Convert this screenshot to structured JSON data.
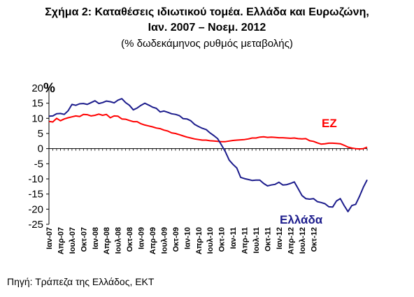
{
  "title_line1": "Σχήμα 2: Καταθέσεις ιδιωτικού τομέα. Ελλάδα και Ευρωζώνη,",
  "title_line2": "Ιαν. 2007 – Νοεμ. 2012",
  "subtitle": "(% δωδεκάμηνος ρυθμός μεταβολής)",
  "source": "Πηγή: Τράπεζα της Ελλάδος, ΕΚΤ",
  "chart_data": {
    "type": "line",
    "ylabel": "%",
    "ylim": [
      -25,
      20
    ],
    "yticks": [
      20,
      15,
      10,
      5,
      0,
      -5,
      -10,
      -15,
      -20,
      -25
    ],
    "xtick_labels": [
      "Ιαν-07",
      "Απρ-07",
      "Ιουλ-07",
      "Οκτ-07",
      "Ιαν-08",
      "Απρ-08",
      "Ιουλ-08",
      "Οκτ-08",
      "Ιαν-09",
      "Απρ-09",
      "Ιουλ-09",
      "Οκτ-09",
      "Ιαν-10",
      "Απρ-10",
      "Ιουλ-10",
      "Οκτ-10",
      "Ιαν-11",
      "Απρ-11",
      "Ιουλ-11",
      "Οκτ-11",
      "Ιαν-12",
      "Απρ-12",
      "Ιουλ-12",
      "Οκτ-12"
    ],
    "grid": false,
    "series": [
      {
        "name": "Ελλάδα",
        "color": "#1c1c8c",
        "values": [
          10.7,
          10.8,
          11.5,
          11.6,
          11.3,
          12.5,
          14.6,
          14.3,
          14.8,
          14.9,
          14.6,
          15.2,
          15.8,
          14.9,
          15.2,
          15.7,
          15.5,
          15.1,
          16.0,
          16.5,
          15.2,
          14.3,
          12.8,
          13.4,
          14.3,
          15.0,
          14.4,
          13.7,
          13.3,
          12.1,
          12.4,
          12.0,
          11.5,
          11.3,
          10.9,
          9.9,
          9.8,
          9.2,
          8.0,
          7.3,
          6.7,
          6.3,
          5.2,
          4.3,
          3.3,
          1.2,
          -1.0,
          -3.8,
          -5.2,
          -6.4,
          -9.5,
          -9.9,
          -10.2,
          -10.5,
          -10.4,
          -10.4,
          -11.5,
          -12.3,
          -12.0,
          -11.8,
          -11.1,
          -12.0,
          -11.9,
          -11.5,
          -11.0,
          -13.2,
          -15.5,
          -16.5,
          -16.7,
          -16.5,
          -17.5,
          -17.8,
          -18.2,
          -19.2,
          -19.3,
          -17.3,
          -16.5,
          -18.8,
          -20.8,
          -18.8,
          -18.4,
          -15.8,
          -12.8,
          -10.3
        ],
        "label": "Ελλάδα"
      },
      {
        "name": "ΕΖ",
        "color": "#ff0000",
        "values": [
          9.0,
          8.8,
          10.0,
          9.2,
          9.8,
          10.2,
          10.5,
          10.8,
          10.6,
          11.3,
          11.2,
          10.8,
          11.0,
          11.4,
          11.0,
          11.3,
          10.2,
          10.8,
          10.7,
          9.8,
          9.7,
          9.3,
          8.9,
          8.9,
          8.2,
          7.8,
          7.5,
          7.2,
          6.8,
          6.6,
          6.1,
          5.8,
          5.2,
          5.0,
          4.6,
          4.2,
          3.8,
          3.5,
          3.2,
          3.0,
          2.8,
          2.8,
          2.6,
          2.5,
          2.4,
          2.3,
          2.3,
          2.5,
          2.7,
          2.8,
          2.9,
          3.0,
          3.2,
          3.5,
          3.5,
          3.8,
          3.9,
          3.7,
          3.8,
          3.7,
          3.6,
          3.6,
          3.5,
          3.4,
          3.5,
          3.3,
          3.2,
          3.3,
          2.6,
          2.4,
          1.9,
          1.5,
          1.6,
          1.8,
          1.8,
          1.7,
          1.6,
          1.1,
          0.5,
          0.2,
          0.0,
          -0.1,
          0.0,
          0.5
        ],
        "label": "ΕΖ"
      }
    ]
  }
}
